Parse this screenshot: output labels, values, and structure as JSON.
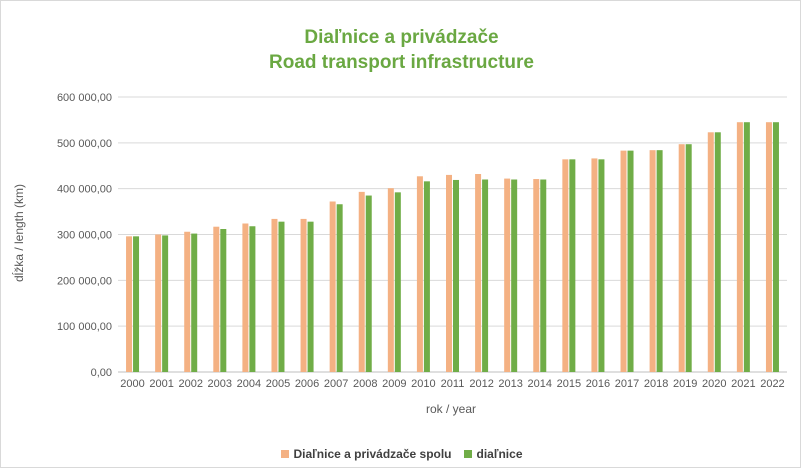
{
  "chart_data": {
    "type": "bar",
    "title": "Diaľnice a privádzače",
    "subtitle": "Road transport infrastructure",
    "xlabel": "rok / year",
    "ylabel": "dĺžka / length (km)",
    "ylim": [
      0,
      600000
    ],
    "y_ticks": [
      "0,00",
      "100 000,00",
      "200 000,00",
      "300 000,00",
      "400 000,00",
      "500 000,00",
      "600 000,00"
    ],
    "grid": true,
    "legend_position": "bottom",
    "categories": [
      "2000",
      "2001",
      "2002",
      "2003",
      "2004",
      "2005",
      "2006",
      "2007",
      "2008",
      "2009",
      "2010",
      "2011",
      "2012",
      "2013",
      "2014",
      "2015",
      "2016",
      "2017",
      "2018",
      "2019",
      "2020",
      "2021",
      "2022"
    ],
    "series": [
      {
        "name": "Diaľnice a privádzače spolu",
        "color": "#f4b183",
        "values": [
          296000,
          300000,
          306000,
          317000,
          324000,
          334000,
          334000,
          372000,
          393000,
          401000,
          427000,
          430000,
          432000,
          422000,
          421000,
          464000,
          466000,
          483000,
          484000,
          497000,
          523000,
          545000,
          545000
        ]
      },
      {
        "name": "diaľnice",
        "color": "#70ad47",
        "values": [
          296000,
          298000,
          302000,
          312000,
          318000,
          328000,
          328000,
          366000,
          385000,
          392000,
          416000,
          419000,
          420000,
          420000,
          420000,
          464000,
          464000,
          483000,
          484000,
          497000,
          523000,
          545000,
          545000
        ]
      }
    ]
  }
}
